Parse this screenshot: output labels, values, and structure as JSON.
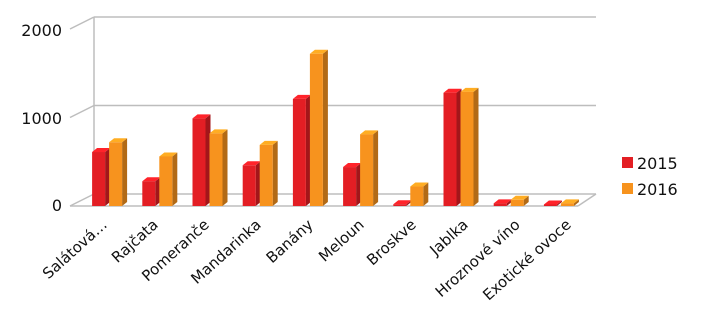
{
  "chart_data": {
    "type": "bar",
    "categories": [
      "Salátová…",
      "Rajčata",
      "Pomeranče",
      "Mandarinka",
      "Banány",
      "Meloun",
      "Broskve",
      "Jablka",
      "Hroznové víno",
      "Exotické ovoce"
    ],
    "series": [
      {
        "name": "2015",
        "values": [
          610,
          280,
          990,
          460,
          1210,
          440,
          20,
          1280,
          30,
          10
        ],
        "color": "#e31e24"
      },
      {
        "name": "2016",
        "values": [
          720,
          560,
          820,
          690,
          1720,
          810,
          220,
          1290,
          70,
          30
        ],
        "color": "#f7931e"
      }
    ],
    "y_ticks": [
      0,
      1000,
      2000
    ],
    "ylim": [
      0,
      2000
    ],
    "grid": true,
    "legend_position": "right",
    "style": "3d-column"
  }
}
